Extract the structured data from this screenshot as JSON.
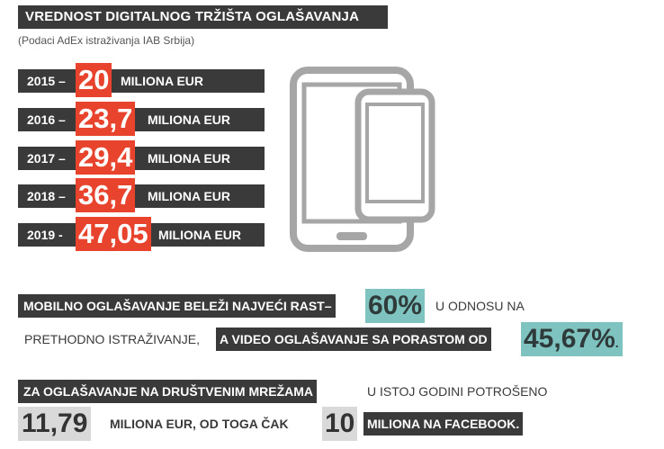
{
  "header": {
    "title": "VREDNOST DIGITALNOG TRŽIŠTA OGLAŠAVANJA",
    "subtitle": "(Podaci AdEx istraživanja IAB Srbija)"
  },
  "years": [
    {
      "prefix": "2015 –",
      "value": "20",
      "unit": "MILIONA EUR"
    },
    {
      "prefix": "2016 –",
      "value": "23,7",
      "unit": "MILIONA EUR"
    },
    {
      "prefix": "2017 –",
      "value": "29,4",
      "unit": "MILIONA EUR"
    },
    {
      "prefix": "2018 –",
      "value": "36,7",
      "unit": "MILIONA EUR"
    },
    {
      "prefix": "2019 -",
      "value": "47,05",
      "unit": "MILIONA EUR"
    }
  ],
  "icon": "devices-icon",
  "mobile": {
    "lead": "MOBILNO OGLAŠAVANJE BELEŽI NAJVEĆI RAST–",
    "pct": "60%",
    "rest1": "U ODNOSU NA",
    "rest2": "PRETHODNO ISTRAŽIVANJE,",
    "video": "A VIDEO OGLAŠAVANJE SA PORASTOM OD",
    "video_pct": "45,67%",
    "end": "."
  },
  "social": {
    "lead": "ZA OGLAŠAVANJE NA DRUŠTVENIM MREŽAMA",
    "rest": "U ISTOJ GODINI POTROŠENO",
    "amount": "11,79",
    "mid": "MILIONA EUR, OD TOGA ČAK",
    "fb_amount": "10",
    "fb": "MILIONA NA FACEBOOK."
  }
}
